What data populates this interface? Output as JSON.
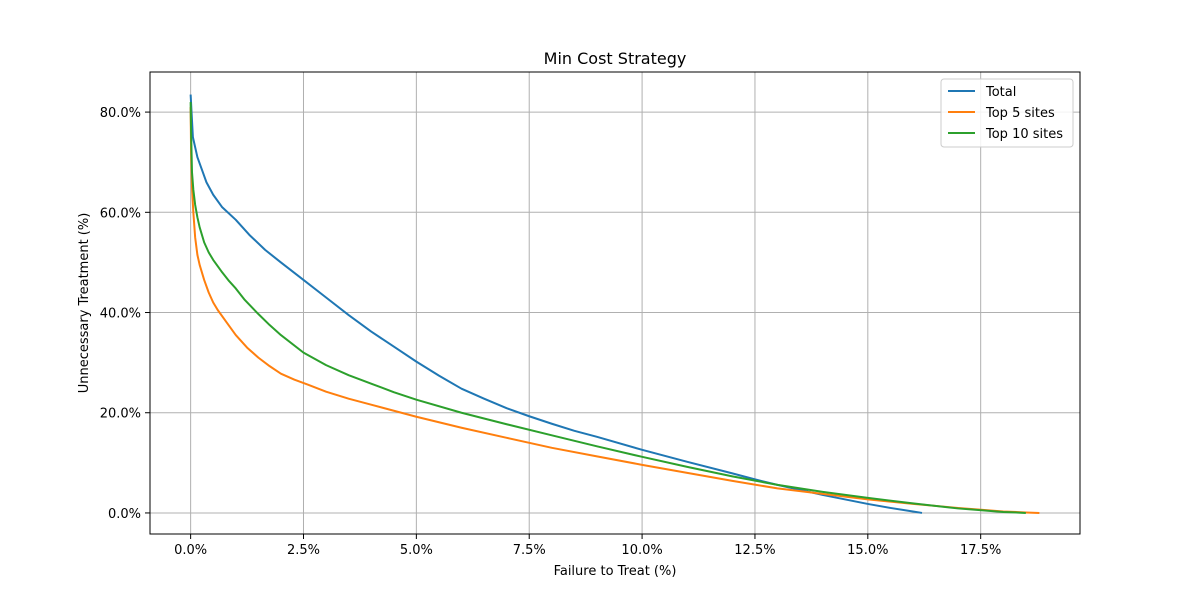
{
  "chart_data": {
    "type": "line",
    "title": "Min Cost Strategy",
    "xlabel": "Failure to Treat (%)",
    "ylabel": "Unnecessary Treatment (%)",
    "xlim": [
      -0.9,
      19.7
    ],
    "ylim": [
      -4.2,
      88.0
    ],
    "xticks": [
      0,
      2.5,
      5,
      7.5,
      10,
      12.5,
      15,
      17.5
    ],
    "xtick_labels": [
      "0.0%",
      "2.5%",
      "5.0%",
      "7.5%",
      "10.0%",
      "12.5%",
      "15.0%",
      "17.5%"
    ],
    "yticks": [
      0,
      20,
      40,
      60,
      80
    ],
    "ytick_labels": [
      "0.0%",
      "20.0%",
      "40.0%",
      "60.0%",
      "80.0%"
    ],
    "grid": true,
    "legend_position": "top-right",
    "series": [
      {
        "name": "Total",
        "color": "#1f77b4",
        "x": [
          0,
          0.02,
          0.05,
          0.1,
          0.15,
          0.25,
          0.35,
          0.5,
          0.7,
          1.0,
          1.3,
          1.65,
          2.0,
          2.5,
          3.0,
          3.5,
          4.0,
          4.5,
          5.0,
          5.5,
          6.0,
          6.5,
          7.0,
          7.5,
          8.0,
          8.5,
          9.0,
          10.0,
          11.0,
          12.0,
          12.5,
          13.0,
          13.5,
          14.0,
          14.5,
          15.0,
          15.5,
          16.0,
          16.2
        ],
        "y": [
          83.5,
          80,
          75,
          73,
          71,
          68.5,
          66,
          63.5,
          61,
          58.5,
          55.5,
          52.5,
          50,
          46.5,
          43,
          39.5,
          36.2,
          33.2,
          30.2,
          27.4,
          24.8,
          22.8,
          20.9,
          19.3,
          17.8,
          16.4,
          15.2,
          12.6,
          10.2,
          7.9,
          6.7,
          5.6,
          4.6,
          3.6,
          2.7,
          1.8,
          1.0,
          0.3,
          0
        ]
      },
      {
        "name": "Top 5 sites",
        "color": "#ff7f0e",
        "x": [
          0,
          0.01,
          0.03,
          0.06,
          0.1,
          0.15,
          0.2,
          0.3,
          0.4,
          0.5,
          0.6,
          0.8,
          1.0,
          1.25,
          1.5,
          1.75,
          2.0,
          2.3,
          2.6,
          3.0,
          3.5,
          4.0,
          5.0,
          6.0,
          7.0,
          8.0,
          9.0,
          10.0,
          11.0,
          12.0,
          13.0,
          14.0,
          15.0,
          16.0,
          17.0,
          18.0,
          18.5,
          18.8
        ],
        "y": [
          81,
          72,
          65,
          60,
          55,
          51.5,
          49.5,
          46.5,
          44,
          42,
          40.5,
          38,
          35.5,
          33,
          31,
          29.3,
          27.8,
          26.6,
          25.6,
          24.2,
          22.8,
          21.6,
          19.2,
          17,
          15,
          13,
          11.3,
          9.6,
          8,
          6.4,
          4.9,
          3.8,
          2.7,
          1.8,
          1.0,
          0.3,
          0.1,
          0
        ]
      },
      {
        "name": "Top 10 sites",
        "color": "#2ca02c",
        "x": [
          0,
          0.01,
          0.03,
          0.06,
          0.1,
          0.15,
          0.2,
          0.3,
          0.4,
          0.5,
          0.7,
          0.85,
          1.0,
          1.2,
          1.5,
          1.75,
          2.0,
          2.5,
          3.0,
          3.5,
          4.0,
          4.5,
          5.0,
          6.0,
          7.0,
          8.0,
          9.0,
          10.0,
          11.0,
          12.0,
          13.0,
          14.0,
          15.0,
          16.0,
          17.0,
          18.0,
          18.5
        ],
        "y": [
          82,
          76,
          68,
          64.5,
          61.5,
          59,
          57,
          54,
          52,
          50.5,
          48,
          46.3,
          44.8,
          42.5,
          39.7,
          37.5,
          35.5,
          32,
          29.5,
          27.5,
          25.8,
          24.1,
          22.6,
          20.0,
          17.7,
          15.5,
          13.3,
          11.2,
          9.2,
          7.3,
          5.6,
          4.2,
          3.0,
          1.9,
          0.9,
          0.2,
          0
        ]
      }
    ]
  }
}
